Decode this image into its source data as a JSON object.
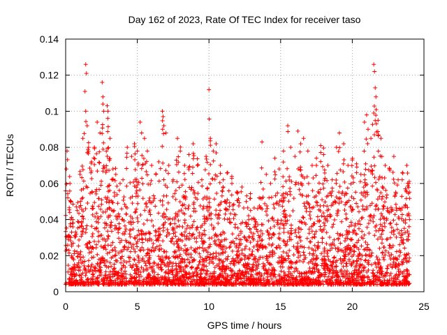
{
  "chart_data": {
    "type": "scatter",
    "title": "Day 162 of 2023, Rate Of TEC Index for receiver taso",
    "xlabel": "GPS time / hours",
    "ylabel": "ROTI / TECUs",
    "xlim": [
      0,
      25
    ],
    "ylim": [
      0,
      0.14
    ],
    "x_ticks": [
      "0",
      "5",
      "10",
      "15",
      "20",
      "25"
    ],
    "y_ticks": [
      "0",
      "0.02",
      "0.04",
      "0.06",
      "0.08",
      "0.1",
      "0.12",
      "0.14"
    ],
    "grid": true,
    "marker": "+",
    "color": "#ff0000",
    "x_range_of_data": [
      0,
      24
    ],
    "note_points": "dense cloud of points sampled every few seconds; density concentrated between 0.005 and 0.04 TECU/s",
    "points": [
      [
        0.05,
        0.068
      ],
      [
        0.1,
        0.078
      ],
      [
        0.15,
        0.052
      ],
      [
        0.3,
        0.06
      ],
      [
        0.5,
        0.04
      ],
      [
        0.8,
        0.045
      ],
      [
        1.0,
        0.065
      ],
      [
        1.2,
        0.085
      ],
      [
        1.4,
        0.126
      ],
      [
        1.45,
        0.121
      ],
      [
        1.35,
        0.111
      ],
      [
        1.4,
        0.1
      ],
      [
        1.5,
        0.092
      ],
      [
        1.6,
        0.08
      ],
      [
        1.8,
        0.072
      ],
      [
        2.0,
        0.08
      ],
      [
        2.2,
        0.094
      ],
      [
        2.4,
        0.088
      ],
      [
        2.55,
        0.116
      ],
      [
        2.6,
        0.108
      ],
      [
        2.6,
        0.104
      ],
      [
        2.65,
        0.1
      ],
      [
        2.9,
        0.103
      ],
      [
        2.95,
        0.1
      ],
      [
        3.1,
        0.085
      ],
      [
        3.3,
        0.068
      ],
      [
        3.5,
        0.065
      ],
      [
        3.8,
        0.06
      ],
      [
        4.0,
        0.062
      ],
      [
        4.3,
        0.08
      ],
      [
        4.6,
        0.075
      ],
      [
        4.8,
        0.082
      ],
      [
        5.0,
        0.078
      ],
      [
        5.2,
        0.094
      ],
      [
        5.3,
        0.088
      ],
      [
        5.5,
        0.085
      ],
      [
        5.7,
        0.078
      ],
      [
        6.0,
        0.07
      ],
      [
        6.3,
        0.065
      ],
      [
        6.5,
        0.072
      ],
      [
        6.75,
        0.1
      ],
      [
        6.8,
        0.097
      ],
      [
        6.85,
        0.092
      ],
      [
        7.0,
        0.088
      ],
      [
        7.2,
        0.07
      ],
      [
        7.5,
        0.062
      ],
      [
        7.8,
        0.085
      ],
      [
        8.0,
        0.078
      ],
      [
        8.3,
        0.07
      ],
      [
        8.6,
        0.076
      ],
      [
        8.9,
        0.082
      ],
      [
        9.2,
        0.07
      ],
      [
        9.5,
        0.062
      ],
      [
        9.8,
        0.075
      ],
      [
        10.0,
        0.112
      ],
      [
        10.1,
        0.085
      ],
      [
        10.3,
        0.078
      ],
      [
        10.5,
        0.082
      ],
      [
        10.8,
        0.07
      ],
      [
        11.0,
        0.062
      ],
      [
        11.3,
        0.066
      ],
      [
        11.6,
        0.06
      ],
      [
        12.0,
        0.055
      ],
      [
        12.3,
        0.058
      ],
      [
        12.6,
        0.05
      ],
      [
        12.9,
        0.045
      ],
      [
        13.2,
        0.04
      ],
      [
        13.5,
        0.052
      ],
      [
        13.7,
        0.083
      ],
      [
        14.0,
        0.065
      ],
      [
        14.3,
        0.06
      ],
      [
        14.6,
        0.074
      ],
      [
        14.9,
        0.068
      ],
      [
        15.2,
        0.078
      ],
      [
        15.5,
        0.092
      ],
      [
        15.7,
        0.08
      ],
      [
        16.0,
        0.075
      ],
      [
        16.2,
        0.089
      ],
      [
        16.4,
        0.082
      ],
      [
        16.6,
        0.085
      ],
      [
        16.9,
        0.078
      ],
      [
        17.2,
        0.07
      ],
      [
        17.5,
        0.074
      ],
      [
        17.8,
        0.081
      ],
      [
        18.0,
        0.076
      ],
      [
        18.3,
        0.07
      ],
      [
        18.6,
        0.062
      ],
      [
        18.9,
        0.08
      ],
      [
        19.1,
        0.088
      ],
      [
        19.4,
        0.082
      ],
      [
        19.7,
        0.07
      ],
      [
        20.0,
        0.073
      ],
      [
        20.3,
        0.066
      ],
      [
        20.6,
        0.065
      ],
      [
        20.85,
        0.094
      ],
      [
        21.0,
        0.098
      ],
      [
        21.1,
        0.09
      ],
      [
        21.3,
        0.085
      ],
      [
        21.5,
        0.126
      ],
      [
        21.55,
        0.122
      ],
      [
        21.6,
        0.113
      ],
      [
        21.65,
        0.108
      ],
      [
        21.8,
        0.095
      ],
      [
        22.0,
        0.085
      ],
      [
        22.3,
        0.07
      ],
      [
        22.6,
        0.068
      ],
      [
        22.9,
        0.075
      ],
      [
        23.2,
        0.062
      ],
      [
        23.5,
        0.066
      ],
      [
        23.8,
        0.07
      ],
      [
        23.95,
        0.06
      ]
    ]
  }
}
